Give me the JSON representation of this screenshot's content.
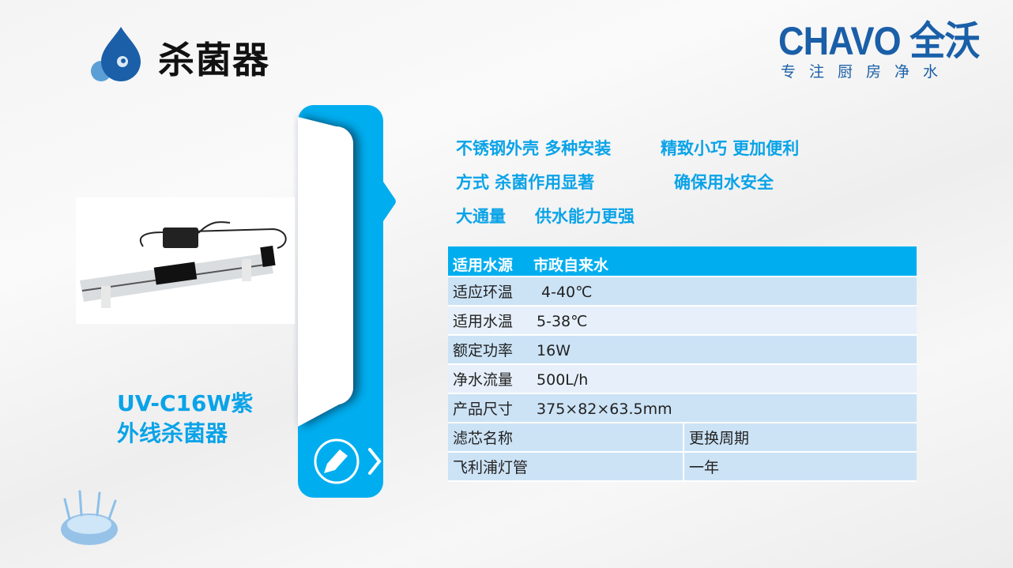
{
  "header": {
    "title": "杀菌器",
    "brand_name": "CHAVO 全沃",
    "brand_slogan": "专注厨房净水",
    "brand_color": "#1a5fa8",
    "accent_color": "#00aeef"
  },
  "features": [
    {
      "left": "不锈钢外壳 多种安装",
      "right": "精致小巧 更加便利"
    },
    {
      "left": "方式 杀菌作用显著",
      "right": "确保用水安全"
    },
    {
      "left": "大通量",
      "right": "供水能力更强"
    }
  ],
  "product": {
    "name_line1": "UV-C16W紫",
    "name_line2": "外线杀菌器"
  },
  "specs": {
    "header": {
      "label": "适用水源",
      "value": "市政自来水"
    },
    "rows": [
      {
        "label": "适应环温",
        "value": "4-40℃"
      },
      {
        "label": "适用水温",
        "value": "5-38℃"
      },
      {
        "label": "额定功率",
        "value": "16W"
      },
      {
        "label": "净水流量",
        "value": "500L/h"
      },
      {
        "label": "产品尺寸",
        "value": "375×82×63.5mm"
      }
    ],
    "filter_header": {
      "name": "滤芯名称",
      "period": "更换周期"
    },
    "filters": [
      {
        "name": "飞利浦灯管",
        "period": "一年"
      }
    ]
  },
  "icons": [
    "water-drop-icon",
    "pencil-icon",
    "chevron-right-icon",
    "water-splash-icon"
  ]
}
